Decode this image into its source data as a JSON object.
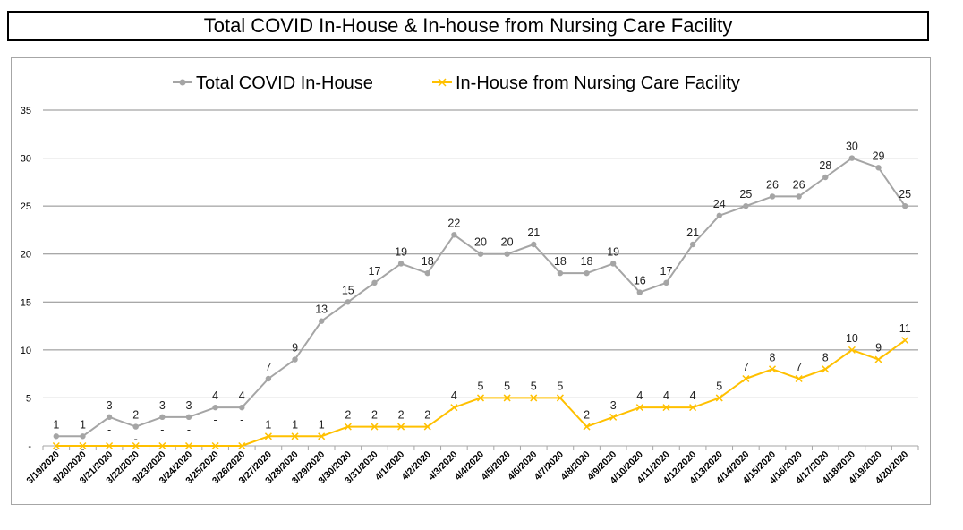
{
  "chart_data": {
    "type": "line",
    "title": "Total COVID In-House & In-house from Nursing Care Facility",
    "ylim": [
      0,
      35
    ],
    "yticks": [
      0,
      5,
      10,
      15,
      20,
      25,
      30,
      35
    ],
    "ytick_labels": [
      "-",
      "5",
      "10",
      "15",
      "20",
      "25",
      "30",
      "35"
    ],
    "grid": true,
    "legend_position": "top",
    "categories": [
      "3/19/2020",
      "3/20/2020",
      "3/21/2020",
      "3/22/2020",
      "3/23/2020",
      "3/24/2020",
      "3/25/2020",
      "3/26/2020",
      "3/27/2020",
      "3/28/2020",
      "3/29/2020",
      "3/30/2020",
      "3/31/2020",
      "4/1/2020",
      "4/2/2020",
      "4/3/2020",
      "4/4/2020",
      "4/5/2020",
      "4/6/2020",
      "4/7/2020",
      "4/8/2020",
      "4/9/2020",
      "4/10/2020",
      "4/11/2020",
      "4/12/2020",
      "4/13/2020",
      "4/14/2020",
      "4/15/2020",
      "4/16/2020",
      "4/17/2020",
      "4/18/2020",
      "4/19/2020",
      "4/20/2020"
    ],
    "series": [
      {
        "name": "Total COVID In-House",
        "color": "#a5a5a5",
        "marker": "circle",
        "values": [
          1,
          1,
          3,
          2,
          3,
          3,
          4,
          4,
          7,
          9,
          13,
          15,
          17,
          19,
          18,
          22,
          20,
          20,
          21,
          18,
          18,
          19,
          16,
          17,
          21,
          24,
          25,
          26,
          26,
          28,
          30,
          29,
          25
        ],
        "labels": [
          "1",
          "1",
          "3",
          "2",
          "3",
          "3",
          "4",
          "4",
          "7",
          "9",
          "13",
          "15",
          "17",
          "19",
          "18",
          "22",
          "20",
          "20",
          "21",
          "18",
          "18",
          "19",
          "16",
          "17",
          "21",
          "24",
          "25",
          "26",
          "26",
          "28",
          "30",
          "29",
          "25"
        ]
      },
      {
        "name": "In-House from Nursing Care Facility",
        "color": "#ffc000",
        "marker": "x",
        "values": [
          0,
          0,
          0,
          0,
          0,
          0,
          0,
          0,
          1,
          1,
          1,
          2,
          2,
          2,
          2,
          4,
          5,
          5,
          5,
          5,
          2,
          3,
          4,
          4,
          4,
          5,
          7,
          8,
          7,
          8,
          10,
          9,
          11
        ],
        "labels": [
          "-",
          "-",
          "-",
          "-",
          "-",
          "-",
          "-",
          "-",
          "1",
          "1",
          "1",
          "2",
          "2",
          "2",
          "2",
          "4",
          "5",
          "5",
          "5",
          "5",
          "2",
          "3",
          "4",
          "4",
          "4",
          "5",
          "7",
          "8",
          "7",
          "8",
          "10",
          "9",
          "11"
        ]
      }
    ]
  }
}
